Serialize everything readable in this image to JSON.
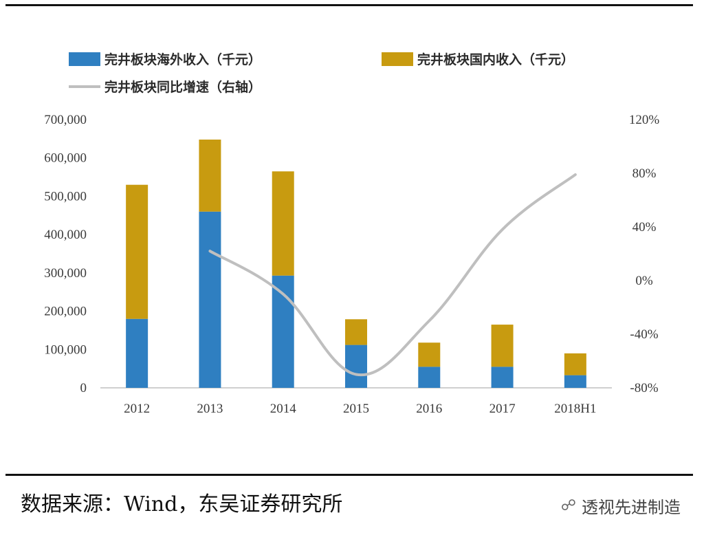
{
  "chart_data": {
    "type": "bar",
    "stacked": true,
    "categories": [
      "2012",
      "2013",
      "2014",
      "2015",
      "2016",
      "2017",
      "2018H1"
    ],
    "series": [
      {
        "name": "完井板块海外收入（千元）",
        "values": [
          180000,
          460000,
          293000,
          112000,
          55000,
          55000,
          33000
        ],
        "color": "#2f7fc1"
      },
      {
        "name": "完井板块国内收入（千元）",
        "values": [
          350000,
          188000,
          272000,
          67000,
          63000,
          110000,
          57000
        ],
        "color": "#c89b10"
      }
    ],
    "line_series": {
      "name": "完井板块同比增速（右轴）",
      "axis": "right",
      "x": [
        "2013",
        "2014",
        "2015",
        "2016",
        "2017",
        "2018H1"
      ],
      "values": [
        22,
        -10,
        -70,
        -30,
        38,
        79
      ],
      "color": "#bfbfbf"
    },
    "y_left": {
      "lim": [
        0,
        700000
      ],
      "ticks": [
        "0",
        "100,000",
        "200,000",
        "300,000",
        "400,000",
        "500,000",
        "600,000",
        "700,000"
      ]
    },
    "y_right": {
      "lim": [
        -80,
        120
      ],
      "ticks": [
        "-80%",
        "-40%",
        "0%",
        "40%",
        "80%",
        "120%"
      ]
    },
    "legend": "top",
    "grid": false
  },
  "source": "数据来源：Wind，东吴证券研究所",
  "watermark": "透视先进制造"
}
